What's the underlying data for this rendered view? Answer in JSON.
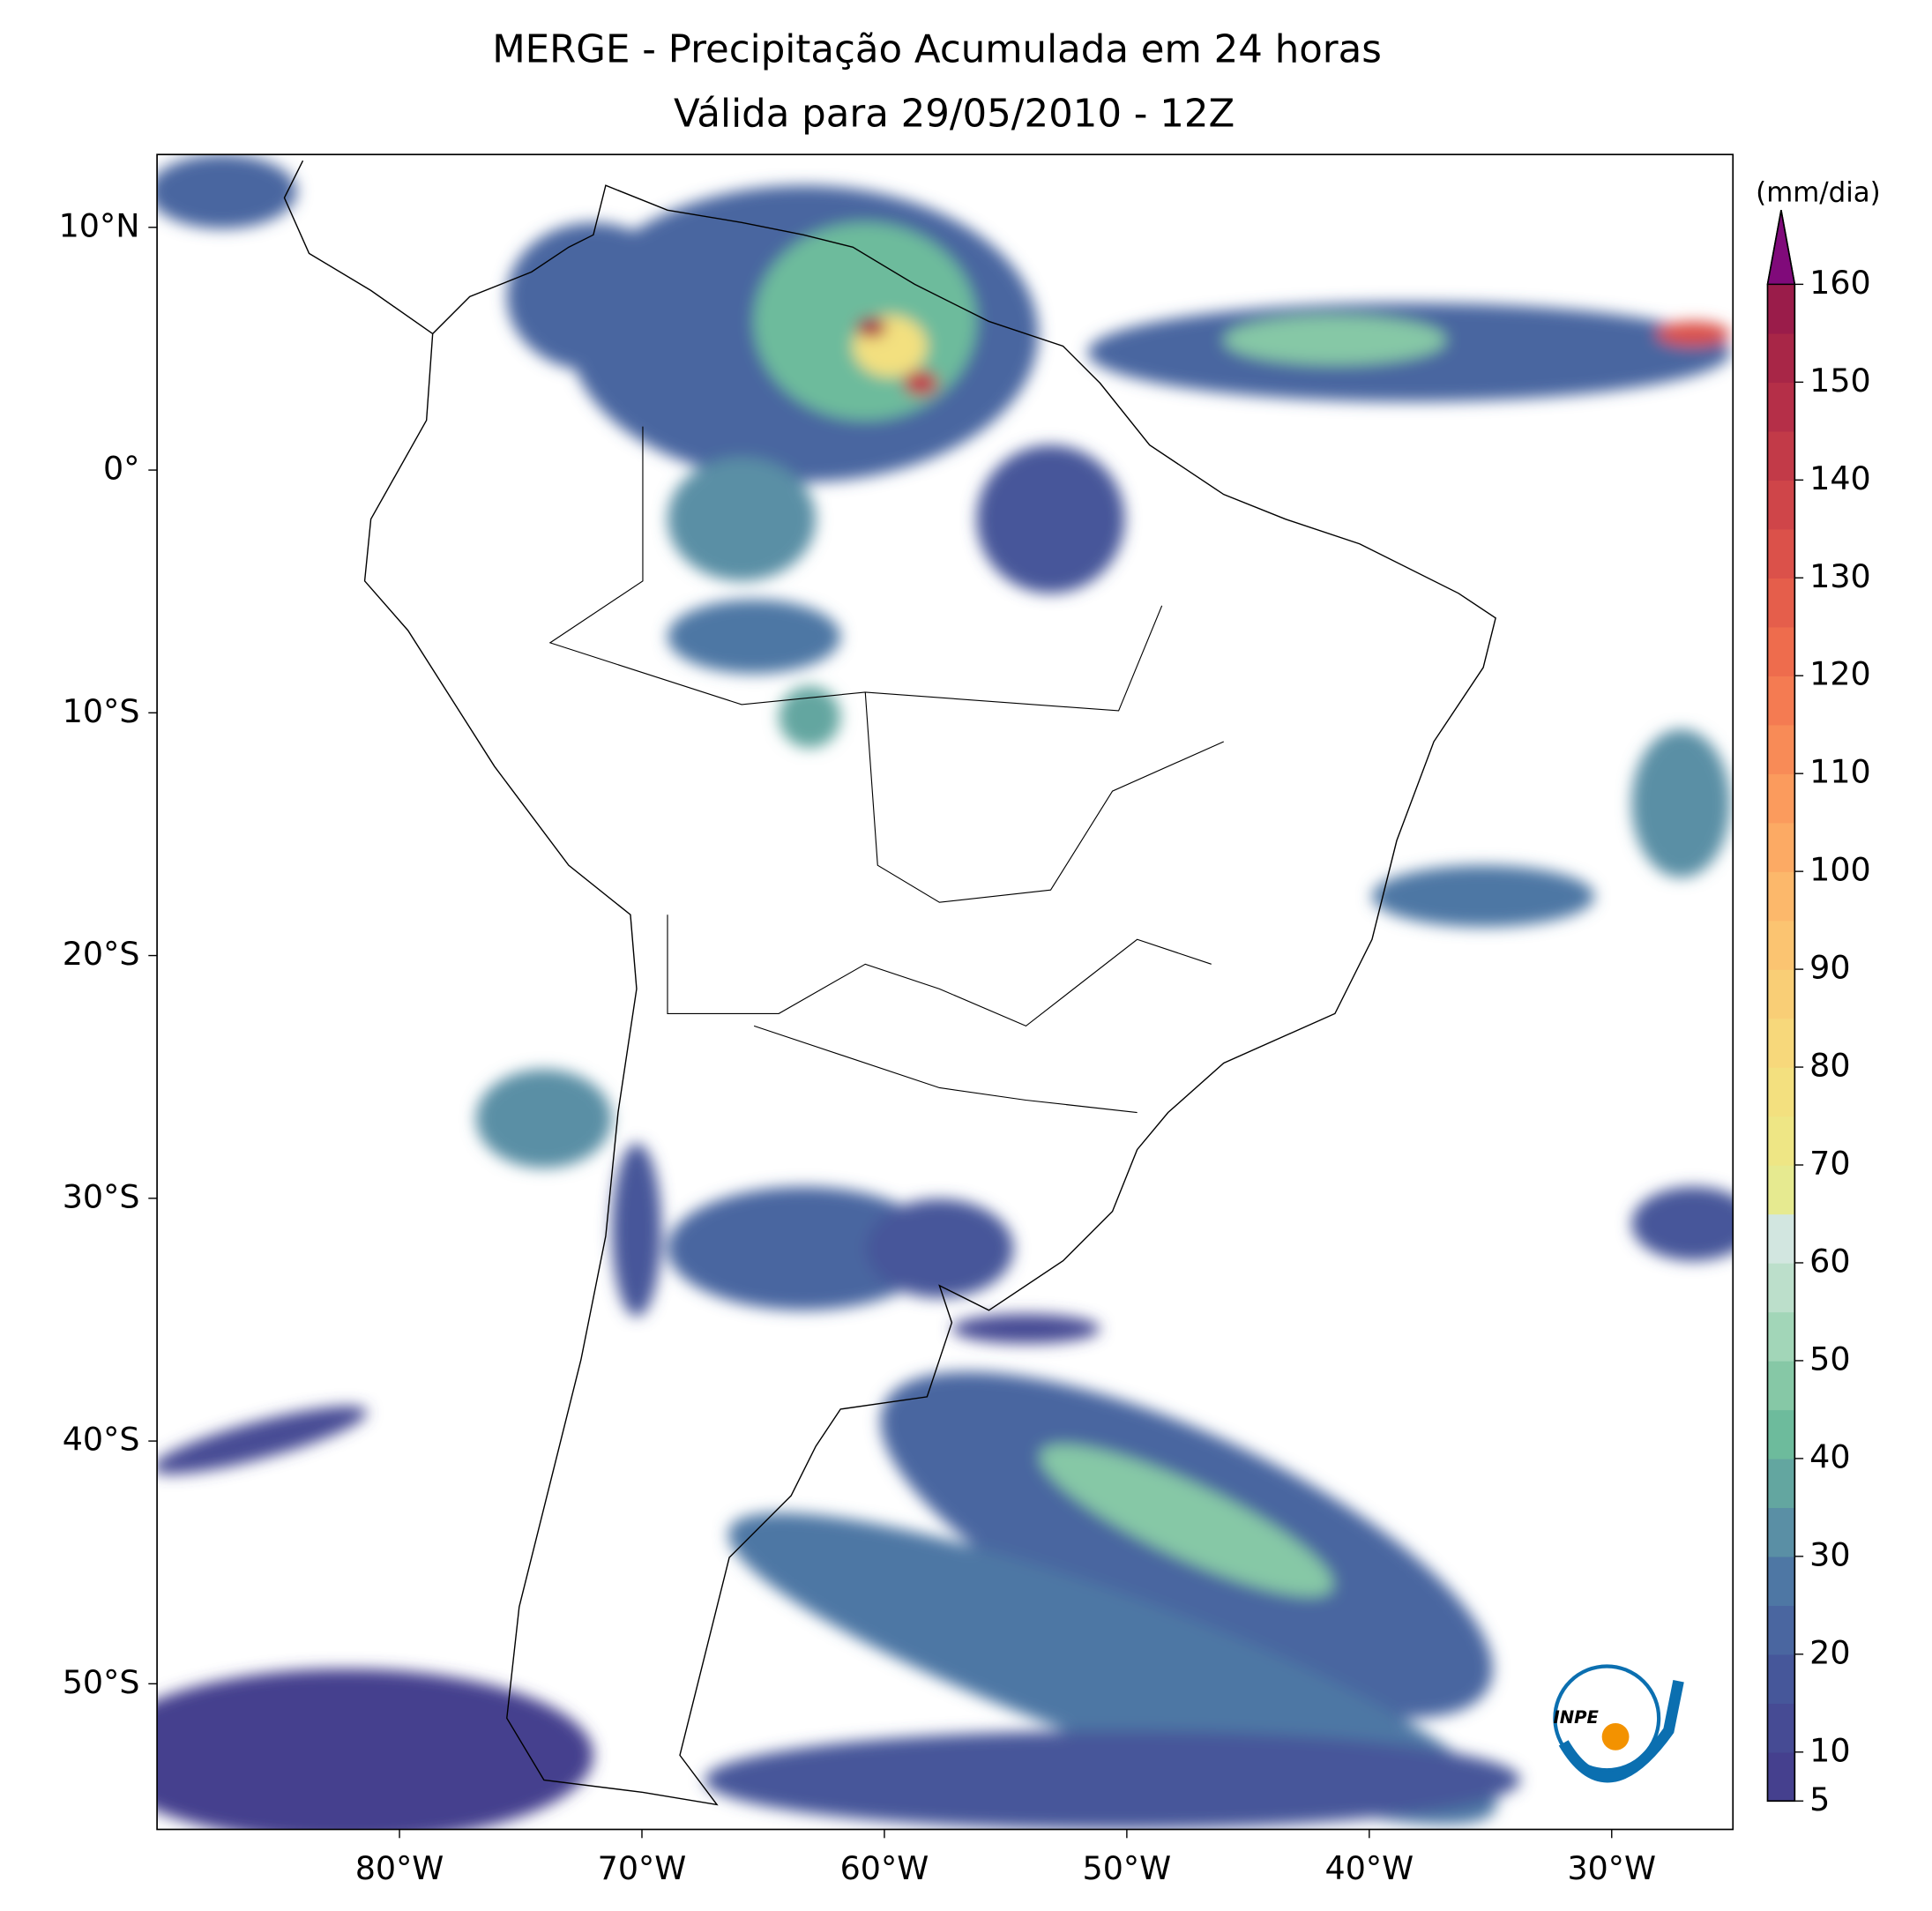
{
  "chart_data": {
    "type": "map",
    "title": "MERGE - Precipitação Acumulada em 24 horas",
    "subtitle": "Válida para 29/05/2010 - 12Z",
    "xlim": [
      -90,
      -25
    ],
    "ylim": [
      -56,
      13
    ],
    "xticks": [
      {
        "value": -80,
        "label": "80°W"
      },
      {
        "value": -70,
        "label": "70°W"
      },
      {
        "value": -60,
        "label": "60°W"
      },
      {
        "value": -50,
        "label": "50°W"
      },
      {
        "value": -40,
        "label": "40°W"
      },
      {
        "value": -30,
        "label": "30°W"
      }
    ],
    "yticks": [
      {
        "value": 10,
        "label": "10°N"
      },
      {
        "value": 0,
        "label": "0°"
      },
      {
        "value": -10,
        "label": "10°S"
      },
      {
        "value": -20,
        "label": "20°S"
      },
      {
        "value": -30,
        "label": "30°S"
      },
      {
        "value": -40,
        "label": "40°S"
      },
      {
        "value": -50,
        "label": "50°S"
      }
    ],
    "colorbar": {
      "label": "(mm/dia)",
      "lim": [
        5,
        160
      ],
      "ticks": [
        5,
        10,
        20,
        30,
        40,
        50,
        60,
        70,
        80,
        90,
        100,
        110,
        120,
        130,
        140,
        150,
        160
      ],
      "colors": [
        "#45408e",
        "#464b94",
        "#46579a",
        "#4a66a0",
        "#4e77a4",
        "#5a8fa5",
        "#63a6a0",
        "#6dbb9c",
        "#86c8a6",
        "#a2d6b8",
        "#bcdfcb",
        "#d2e6e0",
        "#e6ea90",
        "#eee685",
        "#f3e07f",
        "#f7d87b",
        "#f9ce76",
        "#fbc471",
        "#fcb86b",
        "#fcaa64",
        "#fb9b5d",
        "#f88b57",
        "#f47b52",
        "#ee6c4d",
        "#e55e4b",
        "#db514a",
        "#cf4549",
        "#c23a48",
        "#b52f48",
        "#a82647",
        "#9a1c4a"
      ],
      "extend_color": "#800a7a"
    },
    "logo_text": "INPE"
  }
}
